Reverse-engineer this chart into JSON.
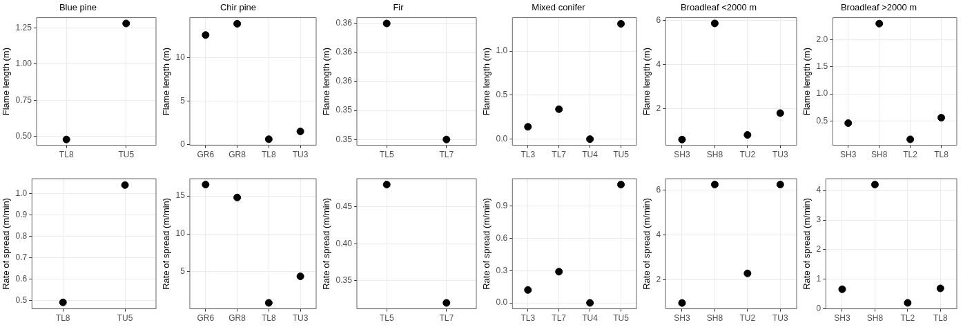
{
  "chart_data": [
    {
      "type": "scatter",
      "title": "Blue pine",
      "ylabel": "Flame length (m)",
      "categories": [
        "TL8",
        "TU5"
      ],
      "values": [
        0.48,
        1.28
      ],
      "color": "#000000",
      "marker": "circle",
      "grid": true,
      "ylim": [
        0.44,
        1.32
      ],
      "yticks": [
        {
          "value": 0.5,
          "label": "0.50"
        },
        {
          "value": 0.75,
          "label": "0.75"
        },
        {
          "value": 1,
          "label": "1.00"
        },
        1.25
      ]
    },
    {
      "type": "scatter",
      "title": "Chir pine",
      "ylabel": "Flame length (m)",
      "categories": [
        "GR6",
        "GR8",
        "TL8",
        "TU3"
      ],
      "values": [
        12.6,
        13.9,
        0.6,
        1.5
      ],
      "color": "#000000",
      "marker": "circle",
      "grid": true,
      "ylim": [
        -0.1,
        14.6
      ],
      "yticks": [
        0,
        5,
        10
      ]
    },
    {
      "type": "scatter",
      "title": "Fir",
      "ylabel": "Flame length (m)",
      "categories": [
        "TL5",
        "TL7"
      ],
      "values": [
        0.36,
        0.35
      ],
      "color": "#000000",
      "marker": "circle",
      "grid": true,
      "ylim": [
        0.3495,
        0.3605
      ],
      "yticks": [
        0.35,
        {
          "value": 0.3525,
          "label": "0.35"
        },
        {
          "value": 0.355,
          "label": "0.36"
        },
        {
          "value": 0.3575,
          "label": "0.36"
        },
        0.36
      ]
    },
    {
      "type": "scatter",
      "title": "Mixed conifer",
      "ylabel": "Flame length (m)",
      "categories": [
        "TL3",
        "TL7",
        "TU4",
        "TU5"
      ],
      "values": [
        0.14,
        0.34,
        0,
        1.31
      ],
      "color": "#000000",
      "marker": "circle",
      "grid": true,
      "ylim": [
        -0.07,
        1.38
      ],
      "yticks": [
        {
          "value": 0,
          "label": "0.0"
        },
        0.5,
        {
          "value": 1,
          "label": "1.0"
        }
      ]
    },
    {
      "type": "scatter",
      "title": "Broadleaf <2000 m",
      "ylabel": "Flame length (m)",
      "categories": [
        "SH3",
        "SH8",
        "TU2",
        "TU3"
      ],
      "values": [
        0.59,
        5.86,
        0.8,
        1.79
      ],
      "color": "#000000",
      "marker": "circle",
      "grid": true,
      "ylim": [
        0.33,
        6.12
      ],
      "yticks": [
        2,
        4,
        6
      ]
    },
    {
      "type": "scatter",
      "title": "Broadleaf >2000 m",
      "ylabel": "Flame length (m)",
      "categories": [
        "SH3",
        "SH8",
        "TL2",
        "TL8"
      ],
      "values": [
        0.46,
        2.3,
        0.16,
        0.56
      ],
      "color": "#000000",
      "marker": "circle",
      "grid": true,
      "ylim": [
        0.05,
        2.41
      ],
      "yticks": [
        0.5,
        {
          "value": 1,
          "label": "1.0"
        },
        1.5,
        {
          "value": 2,
          "label": "2.0"
        }
      ]
    },
    {
      "type": "scatter",
      "ylabel": "Rate of spread (m/min)",
      "categories": [
        "TL8",
        "TU5"
      ],
      "values": [
        0.49,
        1.04
      ],
      "color": "#000000",
      "marker": "circle",
      "grid": true,
      "ylim": [
        0.46,
        1.07
      ],
      "yticks": [
        0.5,
        0.6,
        0.7,
        0.8,
        0.9,
        {
          "value": 1,
          "label": "1.0"
        }
      ]
    },
    {
      "type": "scatter",
      "ylabel": "Rate of spread (m/min)",
      "categories": [
        "GR6",
        "GR8",
        "TL8",
        "TU3"
      ],
      "values": [
        16.5,
        14.8,
        0.9,
        4.4
      ],
      "color": "#000000",
      "marker": "circle",
      "grid": true,
      "ylim": [
        0.12,
        17.28
      ],
      "yticks": [
        5,
        10,
        15
      ]
    },
    {
      "type": "scatter",
      "ylabel": "Rate of spread (m/min)",
      "categories": [
        "TL5",
        "TL7"
      ],
      "values": [
        0.48,
        0.32
      ],
      "color": "#000000",
      "marker": "circle",
      "grid": true,
      "ylim": [
        0.312,
        0.488
      ],
      "yticks": [
        0.35,
        {
          "value": 0.4,
          "label": "0.40"
        },
        0.45
      ]
    },
    {
      "type": "scatter",
      "ylabel": "Rate of spread (m/min)",
      "categories": [
        "TL3",
        "TL7",
        "TU4",
        "TU5"
      ],
      "values": [
        0.12,
        0.29,
        0,
        1.1
      ],
      "color": "#000000",
      "marker": "circle",
      "grid": true,
      "ylim": [
        -0.055,
        1.155
      ],
      "yticks": [
        {
          "value": 0,
          "label": "0.0"
        },
        0.3,
        0.6,
        0.9
      ]
    },
    {
      "type": "scatter",
      "ylabel": "Rate of spread (m/min)",
      "categories": [
        "SH3",
        "SH8",
        "TU2",
        "TU3"
      ],
      "values": [
        0.97,
        6.26,
        2.29,
        6.26
      ],
      "color": "#000000",
      "marker": "circle",
      "grid": true,
      "ylim": [
        0.71,
        6.52
      ],
      "yticks": [
        2,
        4,
        6
      ]
    },
    {
      "type": "scatter",
      "ylabel": "Rate of spread (m/min)",
      "categories": [
        "SH3",
        "SH8",
        "TL2",
        "TL8"
      ],
      "values": [
        0.66,
        4.2,
        0.2,
        0.69
      ],
      "color": "#000000",
      "marker": "circle",
      "grid": true,
      "ylim": [
        0,
        4.4
      ],
      "yticks": [
        0,
        1,
        2,
        3,
        4
      ]
    }
  ]
}
